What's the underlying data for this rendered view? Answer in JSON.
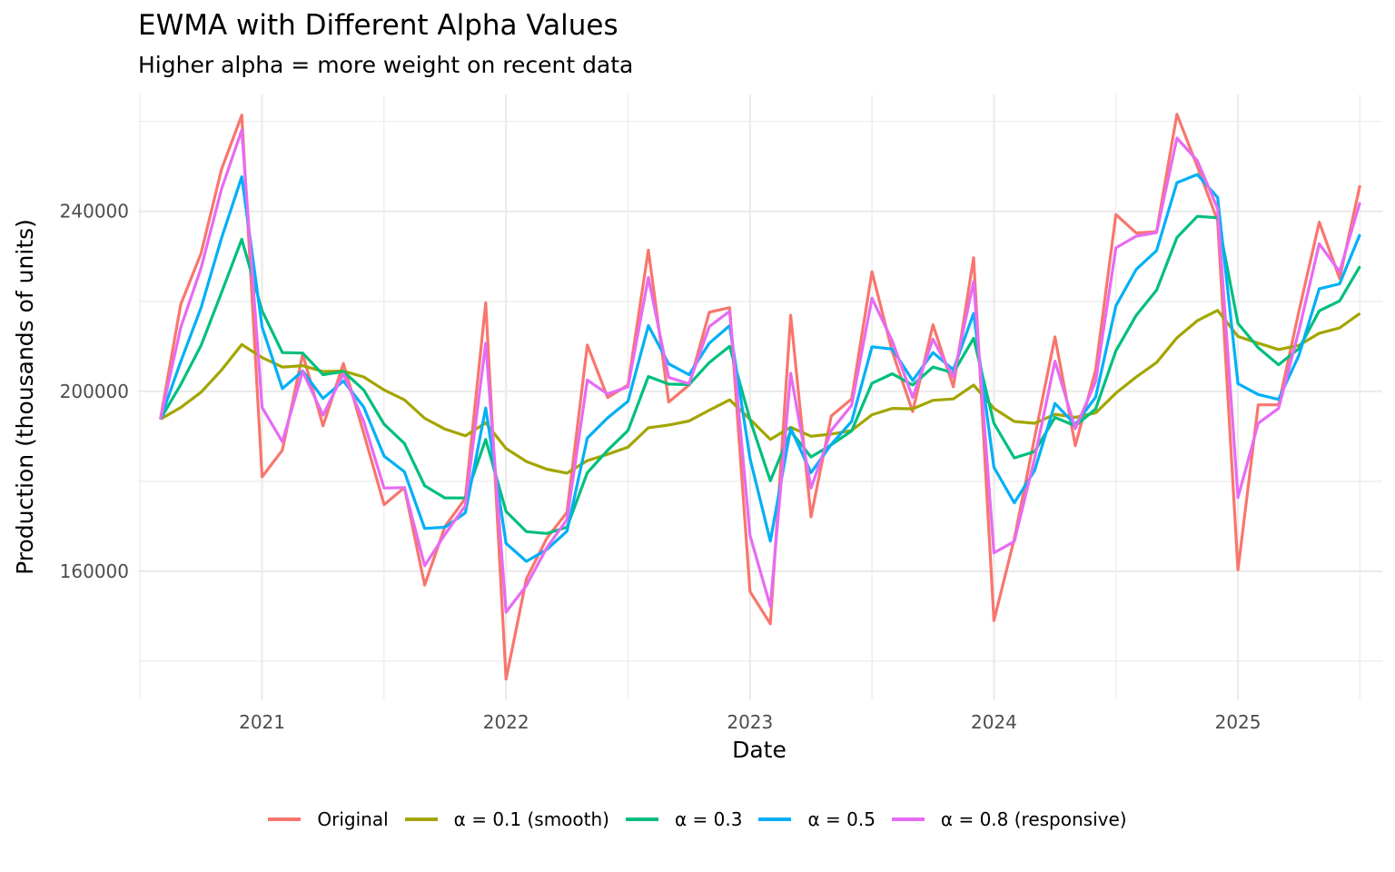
{
  "chart_data": {
    "type": "line",
    "title": "EWMA with Different Alpha Values",
    "subtitle": "Higher alpha = more weight on recent data",
    "xlabel": "Date",
    "ylabel": "Production (thousands of units)",
    "x_start": "2020-08",
    "x_frequency": "monthly",
    "x_ticks": [
      "2021",
      "2022",
      "2023",
      "2024",
      "2025"
    ],
    "x_tick_values": [
      5,
      17,
      29,
      41,
      53
    ],
    "xlim": [
      -1.1,
      60.1
    ],
    "y_ticks": [
      160000,
      200000,
      240000
    ],
    "y_tick_labels": [
      "160000",
      "200000",
      "240000"
    ],
    "y_minor_ticks": [
      140000,
      180000,
      220000,
      260000
    ],
    "ylim": [
      131500,
      266000
    ],
    "grid": true,
    "legend_position": "bottom",
    "series": [
      {
        "name": "Original",
        "color": "#F8766D",
        "values": [
          193800,
          219300,
          230700,
          249300,
          261400,
          181000,
          186900,
          208300,
          192300,
          206200,
          190700,
          174800,
          178600,
          156900,
          170000,
          176200,
          219700,
          136000,
          158300,
          167300,
          173100,
          210300,
          198600,
          201400,
          231400,
          197600,
          201400,
          217600,
          218600,
          155500,
          148300,
          216900,
          172100,
          194500,
          198300,
          226600,
          208800,
          195500,
          214800,
          201000,
          229700,
          149000,
          167200,
          189700,
          212100,
          187900,
          204800,
          239300,
          235200,
          235500,
          261600,
          250000,
          237900,
          160300,
          197000,
          197000,
          217800,
          237600,
          225100,
          245800
        ]
      },
      {
        "name": "α = 0.1 (smooth)",
        "color": "#A3A500",
        "values": [
          193800,
          196400,
          199800,
          204700,
          210400,
          207500,
          205400,
          205700,
          204400,
          204500,
          203200,
          200300,
          198100,
          194000,
          191600,
          190100,
          193000,
          187300,
          184400,
          182700,
          181800,
          184600,
          186000,
          187600,
          191900,
          192500,
          193400,
          195800,
          198100,
          193800,
          189300,
          192000,
          190000,
          190500,
          191300,
          194800,
          196200,
          196100,
          198000,
          198300,
          201400,
          196200,
          193300,
          192900,
          194900,
          194200,
          195200,
          199600,
          203200,
          206400,
          211900,
          215700,
          218000,
          212200,
          210700,
          209300,
          210200,
          212900,
          214100,
          217300
        ]
      },
      {
        "name": "α = 0.3",
        "color": "#00BF7D",
        "values": [
          193800,
          201500,
          210200,
          221900,
          233800,
          217900,
          208600,
          208500,
          203700,
          204400,
          200300,
          192700,
          188400,
          179000,
          176300,
          176300,
          189300,
          173300,
          168800,
          168400,
          169800,
          181900,
          186900,
          191300,
          203300,
          201600,
          201500,
          206400,
          210000,
          193700,
          180100,
          191100,
          185400,
          188100,
          191200,
          201800,
          203900,
          201400,
          205400,
          204100,
          211800,
          192900,
          185200,
          186600,
          194200,
          192300,
          196100,
          209000,
          216900,
          222500,
          234200,
          238900,
          238600,
          215100,
          209700,
          205900,
          209500,
          217900,
          220100,
          227800
        ]
      },
      {
        "name": "α = 0.5",
        "color": "#00B0F6",
        "values": [
          193800,
          206600,
          218600,
          234000,
          247700,
          214300,
          200600,
          204500,
          198400,
          202300,
          196500,
          185600,
          182100,
          169500,
          169800,
          173000,
          196300,
          166200,
          162200,
          164800,
          168900,
          189600,
          194100,
          197800,
          214600,
          206100,
          203700,
          210700,
          214600,
          185100,
          166700,
          191800,
          181900,
          188200,
          193300,
          209900,
          209400,
          202400,
          208600,
          204800,
          217300,
          183100,
          175200,
          182400,
          197300,
          192600,
          198700,
          219000,
          227100,
          231300,
          246400,
          248200,
          243100,
          201700,
          199300,
          198200,
          208000,
          222800,
          223900,
          234900
        ]
      },
      {
        "name": "α = 0.8 (responsive)",
        "color": "#E76BF3",
        "values": [
          193800,
          214200,
          227400,
          244900,
          258100,
          196400,
          188800,
          204400,
          194700,
          203900,
          193300,
          178500,
          178600,
          161200,
          168200,
          174600,
          210700,
          150900,
          156800,
          165200,
          171500,
          202500,
          199400,
          201000,
          225300,
          203100,
          201700,
          214400,
          217800,
          168000,
          152200,
          204000,
          178500,
          191300,
          196900,
          220700,
          211200,
          198600,
          211600,
          203100,
          224400,
          164100,
          166600,
          185100,
          206700,
          191700,
          202200,
          231900,
          234500,
          235300,
          256300,
          251300,
          240600,
          176400,
          192900,
          196200,
          213500,
          232800,
          226600,
          242000
        ]
      }
    ]
  }
}
